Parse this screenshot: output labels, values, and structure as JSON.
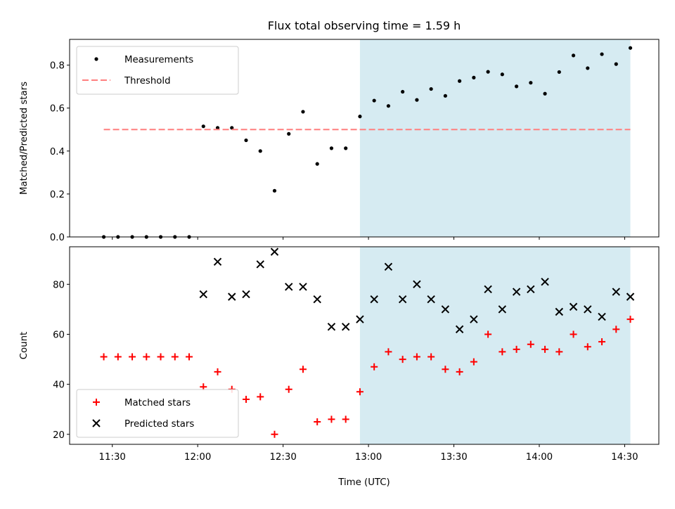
{
  "title": "Flux total observing time = 1.59 h",
  "chart_data": [
    {
      "type": "scatter",
      "ylabel": "Matched/Predicted stars",
      "ylim": [
        0,
        0.92
      ],
      "yticks": [
        0.0,
        0.2,
        0.4,
        0.6,
        0.8
      ],
      "ytick_labels": [
        "0.0",
        "0.2",
        "0.4",
        "0.6",
        "0.8"
      ],
      "shaded_span": {
        "from": "12:57",
        "to": "14:32",
        "color": "#add8e6"
      },
      "series": [
        {
          "name": "Measurements",
          "kind": "points",
          "color": "#000000",
          "points": [
            [
              "11:27",
              0.0
            ],
            [
              "11:32",
              0.0
            ],
            [
              "11:37",
              0.0
            ],
            [
              "11:42",
              0.0
            ],
            [
              "11:47",
              0.0
            ],
            [
              "11:52",
              0.0
            ],
            [
              "11:57",
              0.0
            ],
            [
              "12:02",
              0.515
            ],
            [
              "12:07",
              0.508
            ],
            [
              "12:12",
              0.508
            ],
            [
              "12:17",
              0.45
            ],
            [
              "12:22",
              0.4
            ],
            [
              "12:27",
              0.215
            ],
            [
              "12:32",
              0.48
            ],
            [
              "12:37",
              0.583
            ],
            [
              "12:42",
              0.34
            ],
            [
              "12:47",
              0.413
            ],
            [
              "12:52",
              0.413
            ],
            [
              "12:57",
              0.561
            ],
            [
              "13:02",
              0.635
            ],
            [
              "13:07",
              0.61
            ],
            [
              "13:12",
              0.676
            ],
            [
              "13:17",
              0.638
            ],
            [
              "13:22",
              0.689
            ],
            [
              "13:27",
              0.657
            ],
            [
              "13:32",
              0.726
            ],
            [
              "13:37",
              0.742
            ],
            [
              "13:42",
              0.769
            ],
            [
              "13:47",
              0.757
            ],
            [
              "13:52",
              0.701
            ],
            [
              "13:57",
              0.718
            ],
            [
              "14:02",
              0.667
            ],
            [
              "14:07",
              0.768
            ],
            [
              "14:12",
              0.845
            ],
            [
              "14:17",
              0.786
            ],
            [
              "14:22",
              0.851
            ],
            [
              "14:27",
              0.805
            ],
            [
              "14:32",
              0.88
            ]
          ]
        },
        {
          "name": "Threshold",
          "kind": "dashed-line",
          "color": "#ff7f7f",
          "points": [
            [
              "11:27",
              0.5
            ],
            [
              "14:32",
              0.5
            ]
          ]
        }
      ],
      "legend": "upper left"
    },
    {
      "type": "scatter",
      "xlabel": "Time (UTC)",
      "ylabel": "Count",
      "ylim": [
        16,
        95
      ],
      "yticks": [
        20,
        40,
        60,
        80
      ],
      "ytick_labels": [
        "20",
        "40",
        "60",
        "80"
      ],
      "xticks": [
        "11:30",
        "12:00",
        "12:30",
        "13:00",
        "13:30",
        "14:00",
        "14:30"
      ],
      "xlim": [
        "11:15",
        "14:42"
      ],
      "shaded_span": {
        "from": "12:57",
        "to": "14:32",
        "color": "#add8e6"
      },
      "series": [
        {
          "name": "Matched stars",
          "marker": "plus",
          "color": "#ff0000",
          "points": [
            [
              "11:27",
              51
            ],
            [
              "11:32",
              51
            ],
            [
              "11:37",
              51
            ],
            [
              "11:42",
              51
            ],
            [
              "11:47",
              51
            ],
            [
              "11:52",
              51
            ],
            [
              "11:57",
              51
            ],
            [
              "12:02",
              39
            ],
            [
              "12:07",
              45
            ],
            [
              "12:12",
              38
            ],
            [
              "12:17",
              34
            ],
            [
              "12:22",
              35
            ],
            [
              "12:27",
              20
            ],
            [
              "12:32",
              38
            ],
            [
              "12:37",
              46
            ],
            [
              "12:42",
              25
            ],
            [
              "12:47",
              26
            ],
            [
              "12:52",
              26
            ],
            [
              "12:57",
              37
            ],
            [
              "13:02",
              47
            ],
            [
              "13:07",
              53
            ],
            [
              "13:12",
              50
            ],
            [
              "13:17",
              51
            ],
            [
              "13:22",
              51
            ],
            [
              "13:27",
              46
            ],
            [
              "13:32",
              45
            ],
            [
              "13:37",
              49
            ],
            [
              "13:42",
              60
            ],
            [
              "13:47",
              53
            ],
            [
              "13:52",
              54
            ],
            [
              "13:57",
              56
            ],
            [
              "14:02",
              54
            ],
            [
              "14:07",
              53
            ],
            [
              "14:12",
              60
            ],
            [
              "14:17",
              55
            ],
            [
              "14:22",
              57
            ],
            [
              "14:27",
              62
            ],
            [
              "14:32",
              66
            ]
          ]
        },
        {
          "name": "Predicted stars",
          "marker": "x",
          "color": "#000000",
          "points": [
            [
              "12:02",
              76
            ],
            [
              "12:07",
              89
            ],
            [
              "12:12",
              75
            ],
            [
              "12:17",
              76
            ],
            [
              "12:22",
              88
            ],
            [
              "12:27",
              93
            ],
            [
              "12:32",
              79
            ],
            [
              "12:37",
              79
            ],
            [
              "12:42",
              74
            ],
            [
              "12:47",
              63
            ],
            [
              "12:52",
              63
            ],
            [
              "12:57",
              66
            ],
            [
              "13:02",
              74
            ],
            [
              "13:07",
              87
            ],
            [
              "13:12",
              74
            ],
            [
              "13:17",
              80
            ],
            [
              "13:22",
              74
            ],
            [
              "13:27",
              70
            ],
            [
              "13:32",
              62
            ],
            [
              "13:37",
              66
            ],
            [
              "13:42",
              78
            ],
            [
              "13:47",
              70
            ],
            [
              "13:52",
              77
            ],
            [
              "13:57",
              78
            ],
            [
              "14:02",
              81
            ],
            [
              "14:07",
              69
            ],
            [
              "14:12",
              71
            ],
            [
              "14:17",
              70
            ],
            [
              "14:22",
              67
            ],
            [
              "14:27",
              77
            ],
            [
              "14:32",
              75
            ]
          ]
        }
      ],
      "legend": "lower left"
    }
  ]
}
